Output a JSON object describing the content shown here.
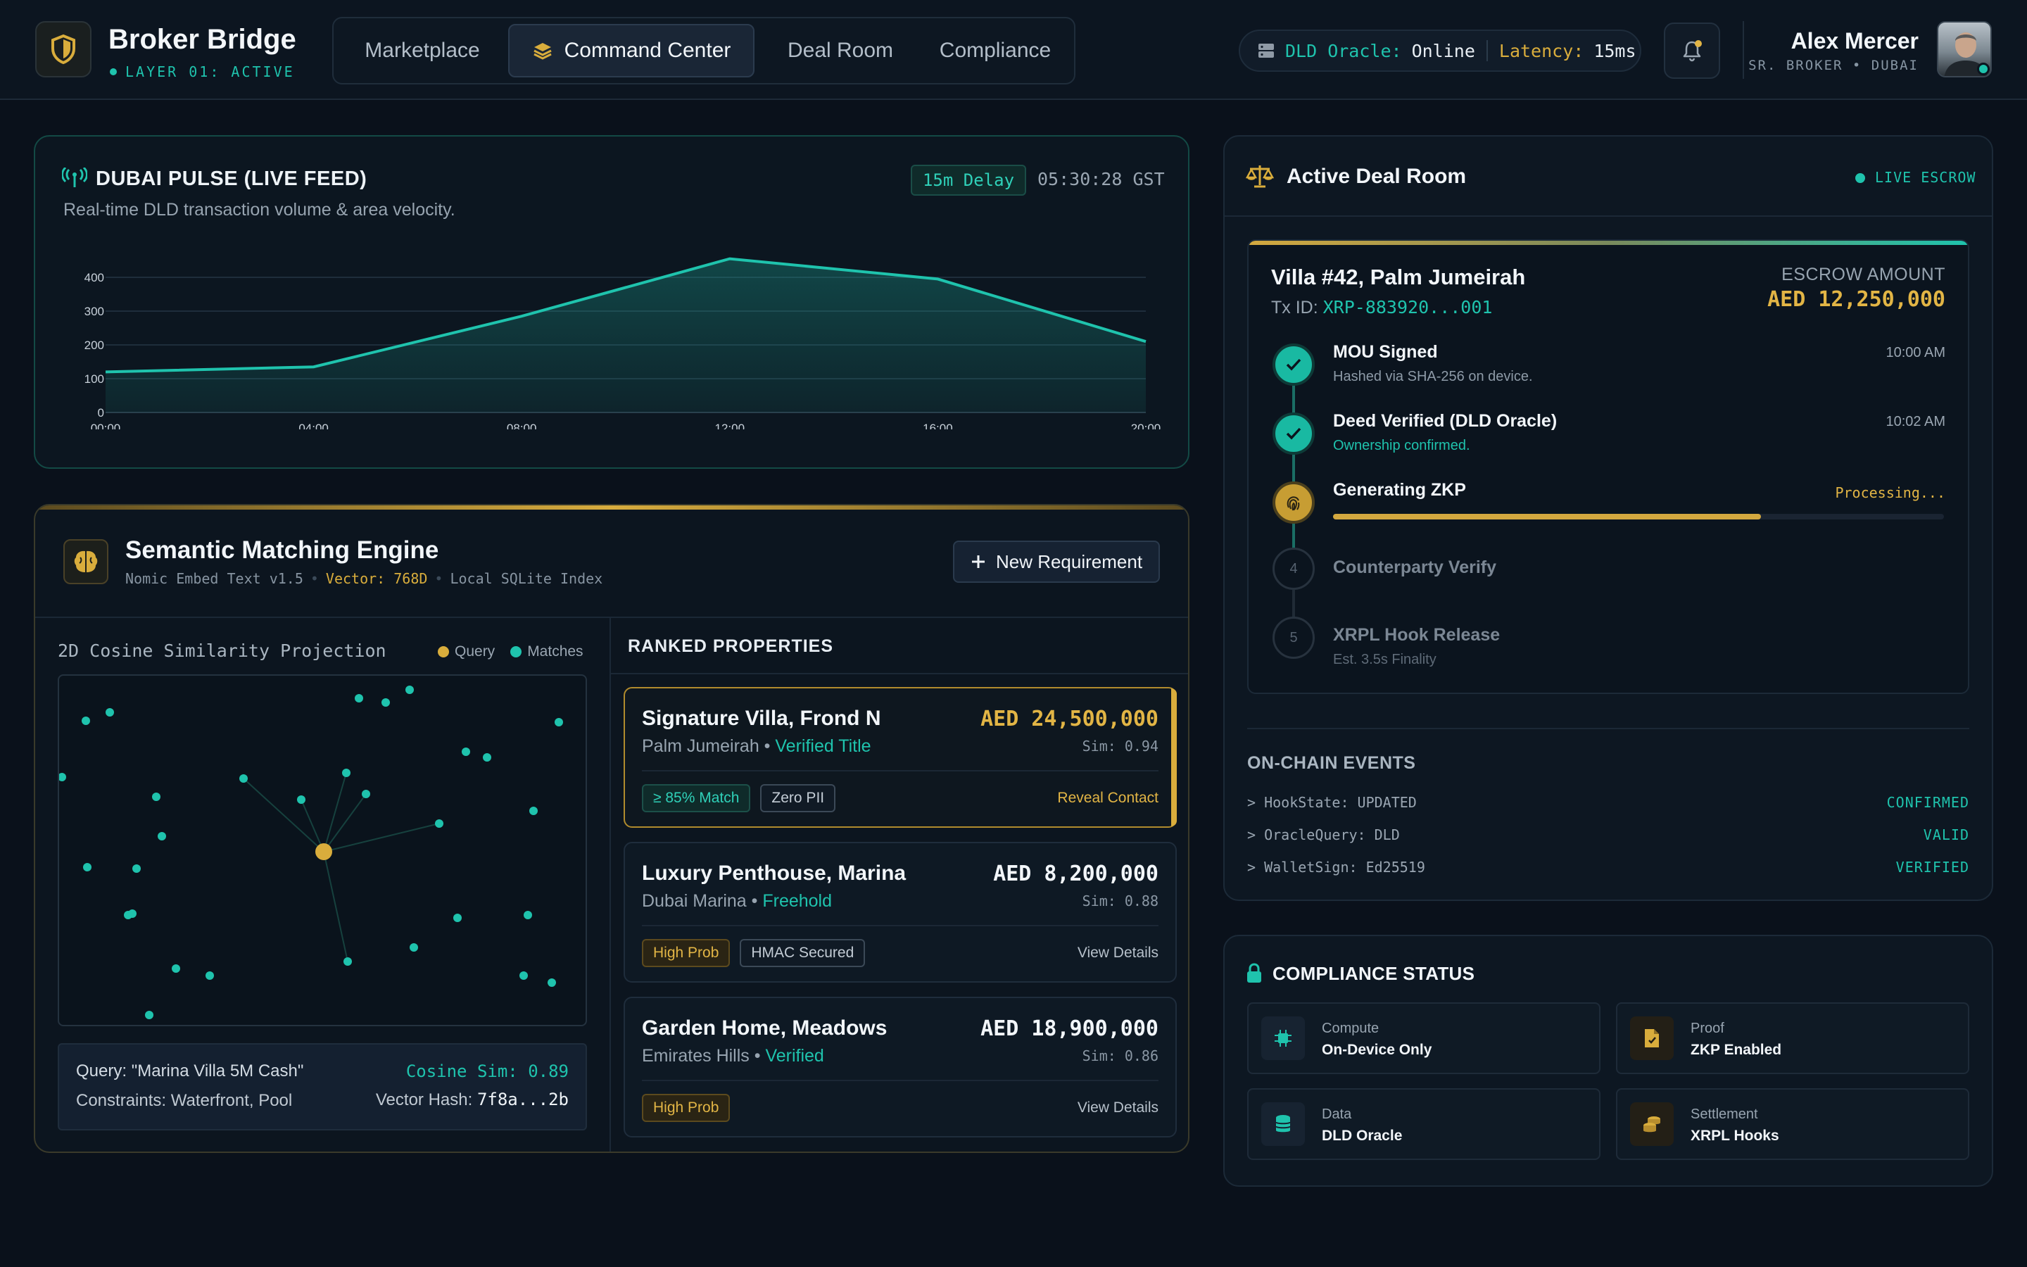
{
  "header": {
    "brand_title": "Broker Bridge",
    "brand_sub": "LAYER 01: ACTIVE",
    "nav": [
      {
        "label": "Marketplace",
        "active": false
      },
      {
        "label": "Command Center",
        "active": true
      },
      {
        "label": "Deal Room",
        "active": false
      },
      {
        "label": "Compliance",
        "active": false
      }
    ],
    "oracle_label": "DLD Oracle:",
    "oracle_value": "Online",
    "latency_label": "Latency:",
    "latency_value": "15ms",
    "user_name": "Alex Mercer",
    "user_role": "SR. BROKER • DUBAI",
    "notification_dot": true
  },
  "pulse": {
    "title": "DUBAI PULSE (LIVE FEED)",
    "subtitle": "Real-time DLD transaction volume & area velocity.",
    "delay_badge": "15m Delay",
    "time": "05:30:28 GST"
  },
  "chart_data": {
    "type": "area",
    "x": [
      "00:00",
      "04:00",
      "08:00",
      "12:00",
      "16:00",
      "20:00"
    ],
    "values": [
      120,
      135,
      285,
      455,
      395,
      210
    ],
    "yticks": [
      0,
      100,
      200,
      300,
      400
    ],
    "ylim": [
      0,
      450
    ],
    "grid": true,
    "color": "#1fc3ad"
  },
  "engine": {
    "title": "Semantic Matching Engine",
    "model": "Nomic Embed Text v1.5",
    "vector": "Vector: 768D",
    "index": "Local SQLite Index",
    "new_req_label": "New Requirement",
    "projection_title": "2D Cosine Similarity Projection",
    "legend_query": "Query",
    "legend_matches": "Matches",
    "query_text": "Query: \"Marina Villa 5M Cash\"",
    "cosine_label": "Cosine Sim: 0.89",
    "constraints": "Constraints: Waterfront, Pool",
    "hash_label": "Vector Hash:",
    "hash_value": "7f8a...2b",
    "ranked_title": "RANKED PROPERTIES"
  },
  "properties": [
    {
      "name": "Signature Villa, Frond N",
      "location": "Palm Jumeirah",
      "status": "Verified Title",
      "price": "AED 24,500,000",
      "sim": "Sim: 0.94",
      "tags": [
        "≥ 85% Match",
        "Zero PII"
      ],
      "action": "Reveal Contact",
      "selected": true
    },
    {
      "name": "Luxury Penthouse, Marina",
      "location": "Dubai Marina",
      "status": "Freehold",
      "price": "AED 8,200,000",
      "sim": "Sim: 0.88",
      "tags": [
        "High Prob",
        "HMAC Secured"
      ],
      "action": "View Details",
      "selected": false
    },
    {
      "name": "Garden Home, Meadows",
      "location": "Emirates Hills",
      "status": "Verified",
      "price": "AED 18,900,000",
      "sim": "Sim: 0.86",
      "tags": [
        "High Prob"
      ],
      "action": "View Details",
      "selected": false
    }
  ],
  "deal": {
    "title": "Active Deal Room",
    "live": "LIVE ESCROW",
    "villa": "Villa #42, Palm Jumeirah",
    "tx_label": "Tx ID:",
    "tx_value": "XRP-883920...001",
    "escrow_label": "ESCROW AMOUNT",
    "escrow_amount": "AED 12,250,000",
    "steps": [
      {
        "title": "MOU Signed",
        "desc": "Hashed via SHA-256 on device.",
        "time": "10:00 AM"
      },
      {
        "title": "Deed Verified (DLD Oracle)",
        "desc": "Ownership confirmed.",
        "time": "10:02 AM"
      },
      {
        "title": "Generating ZKP",
        "status": "Processing...",
        "progress": 0.7
      },
      {
        "num": "4",
        "title": "Counterparty Verify"
      },
      {
        "num": "5",
        "title": "XRPL Hook Release",
        "desc": "Est. 3.5s Finality"
      }
    ],
    "events_title": "ON-CHAIN EVENTS",
    "events": [
      {
        "key": "> HookState: UPDATED",
        "value": "CONFIRMED"
      },
      {
        "key": "> OracleQuery: DLD",
        "value": "VALID"
      },
      {
        "key": "> WalletSign: Ed25519",
        "value": "VERIFIED"
      }
    ]
  },
  "compliance": {
    "title": "COMPLIANCE STATUS",
    "tiles": [
      {
        "label": "Compute",
        "value": "On-Device Only",
        "icon": "chip-icon"
      },
      {
        "label": "Proof",
        "value": "ZKP Enabled",
        "icon": "document-icon"
      },
      {
        "label": "Data",
        "value": "DLD Oracle",
        "icon": "database-icon"
      },
      {
        "label": "Settlement",
        "value": "XRPL Hooks",
        "icon": "coins-icon"
      }
    ]
  },
  "colors": {
    "teal": "#1fc3ad",
    "gold": "#d9ad3c",
    "bg": "#0a111b"
  }
}
